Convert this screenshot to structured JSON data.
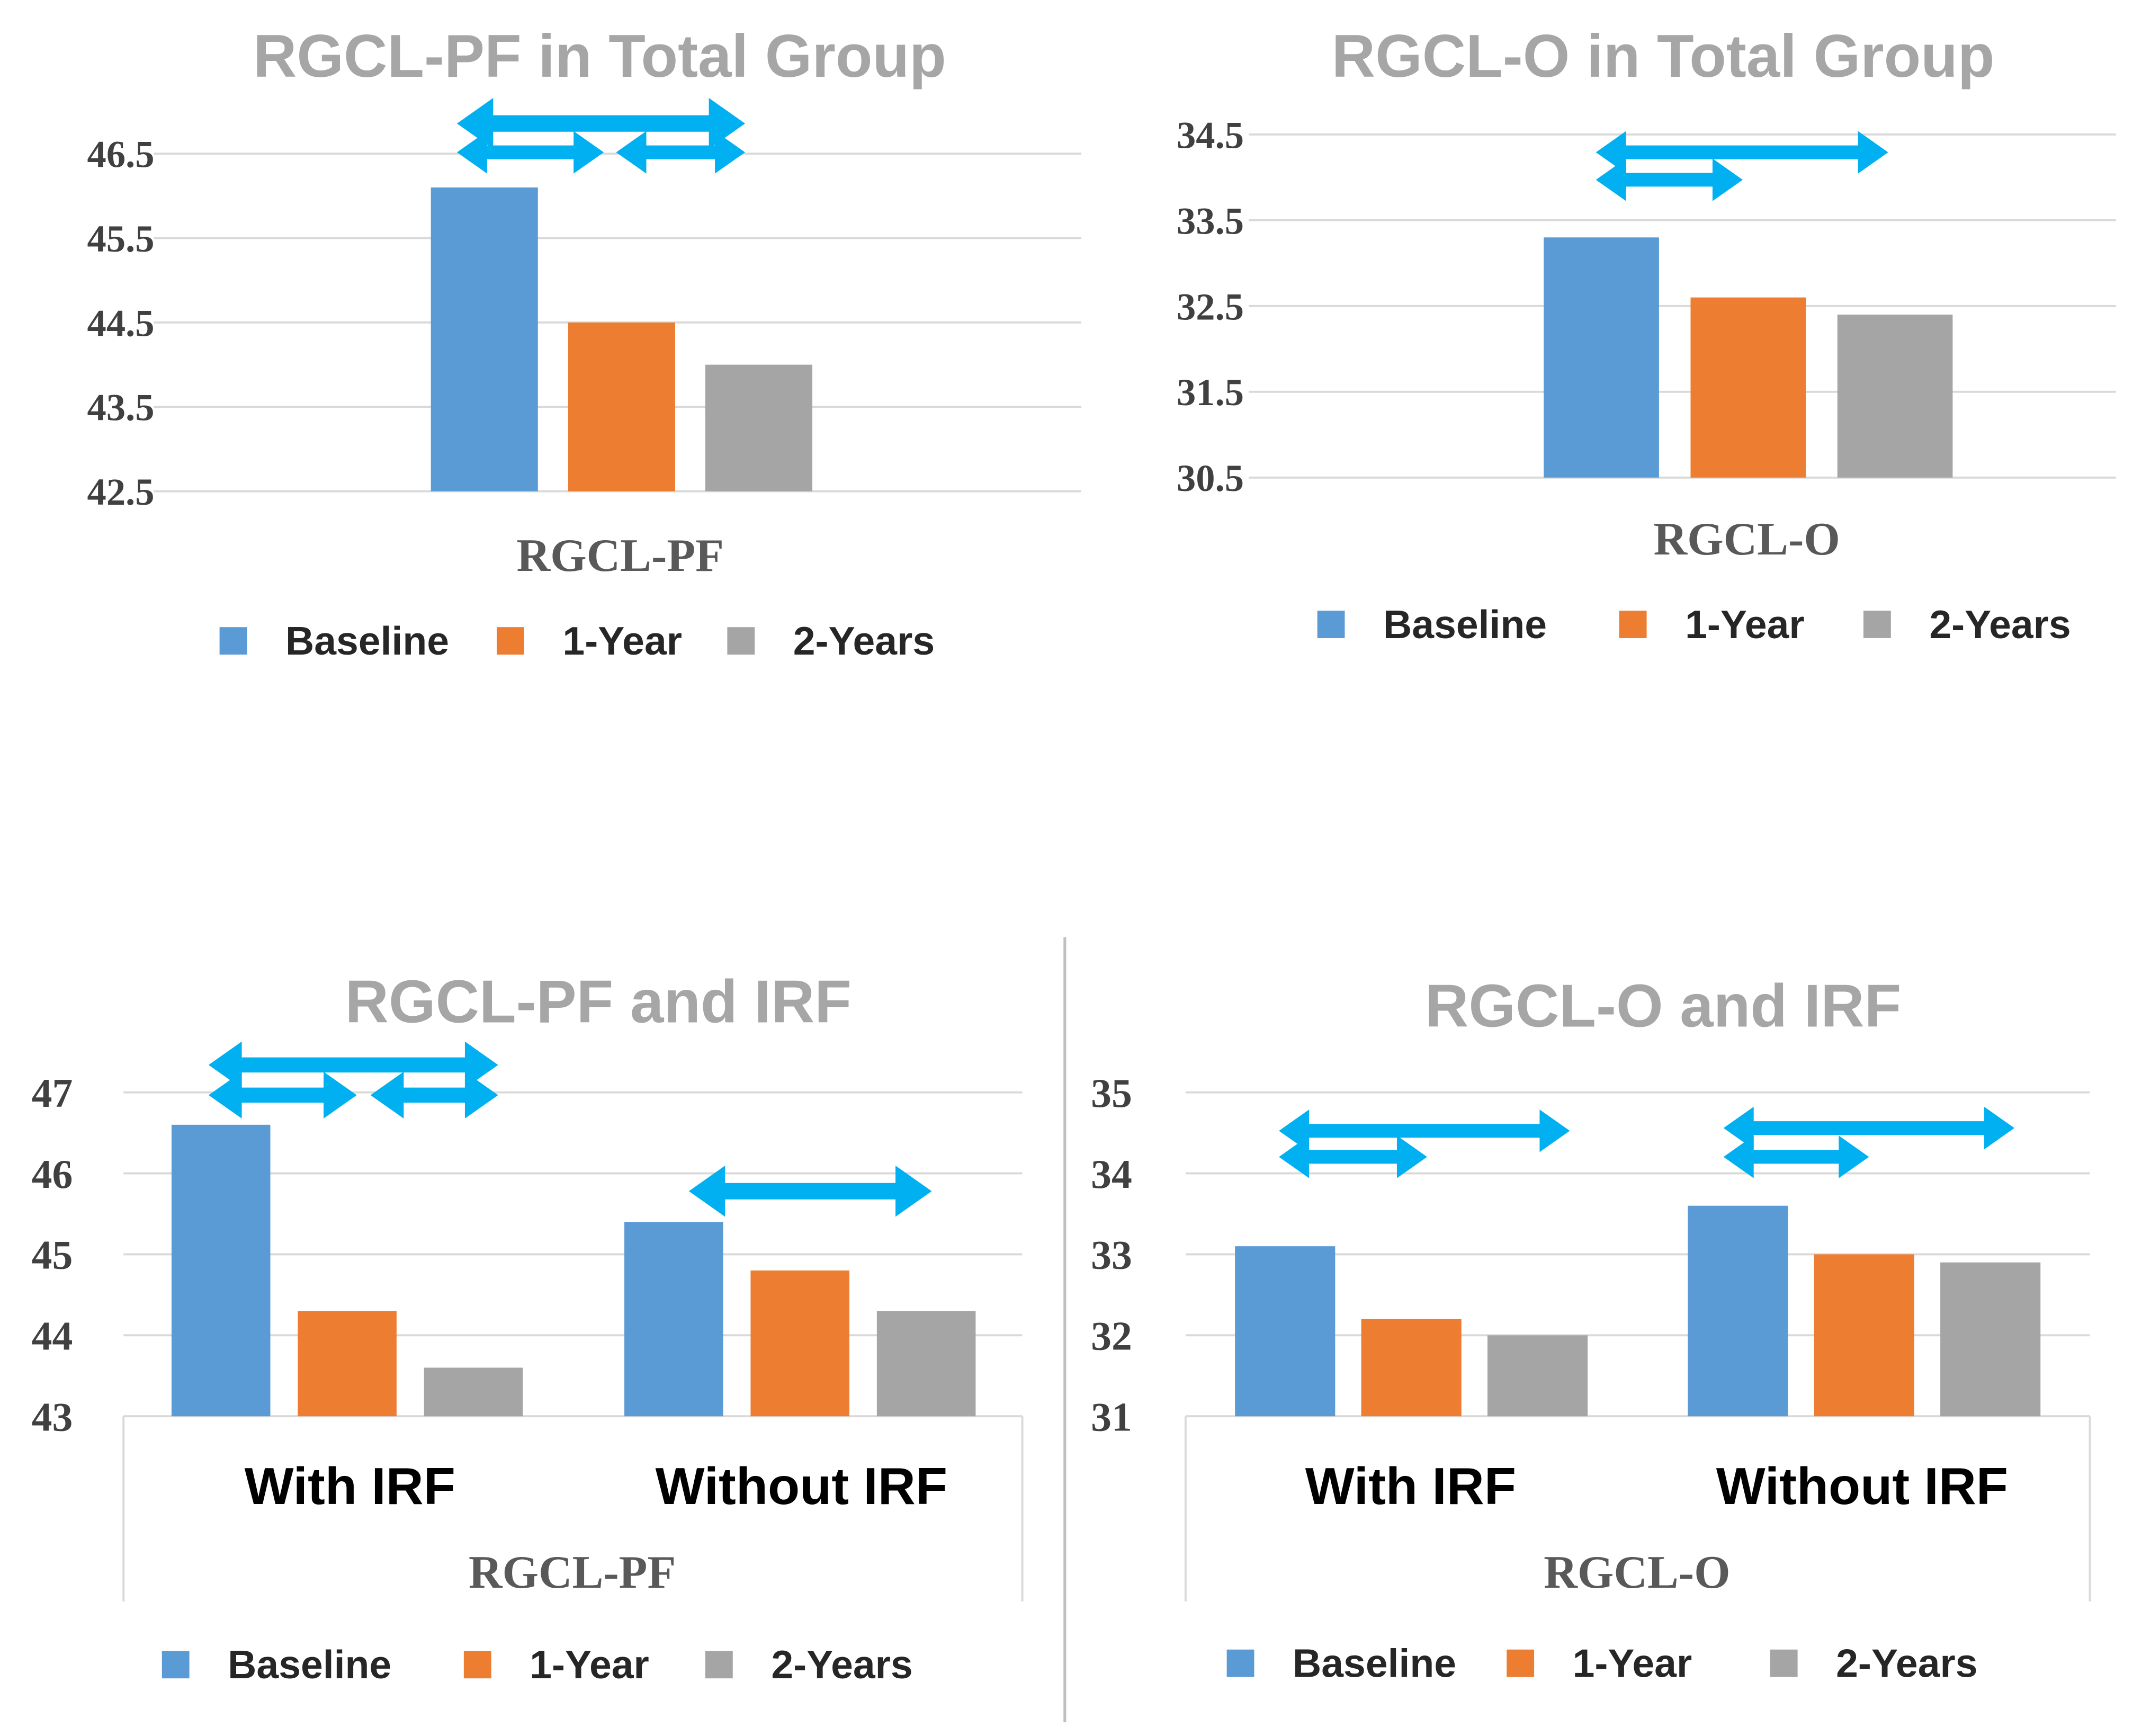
{
  "colors": {
    "baseline": "#5b9bd5",
    "year1": "#ed7d31",
    "year2": "#a5a5a5",
    "arrow": "#00b0f0",
    "grid": "#d9d9d9",
    "title": "#a6a6a6"
  },
  "chart_data": [
    {
      "type": "bar",
      "title": "RGCL-PF in Total Group",
      "xlabel": "RGCL-PF",
      "ylabel": "",
      "ylim": [
        42.5,
        47
      ],
      "yticks": [
        "42.5",
        "43.5",
        "44.5",
        "45.5",
        "46.5"
      ],
      "categories": [
        ""
      ],
      "series": [
        {
          "name": "Baseline",
          "values": [
            46.1
          ]
        },
        {
          "name": "1-Year",
          "values": [
            44.5
          ]
        },
        {
          "name": "2-Years",
          "values": [
            44.0
          ]
        }
      ],
      "annotations": [
        "double-arrow Baseline to 2-Years",
        "double-arrow Baseline to 1-Year",
        "double-arrow 1-Year to 2-Years"
      ],
      "legend": [
        "Baseline",
        "1-Year",
        "2-Years"
      ]
    },
    {
      "type": "bar",
      "title": "RGCL-O in Total Group",
      "xlabel": "RGCL-O",
      "ylabel": "",
      "ylim": [
        30.5,
        34.5
      ],
      "yticks": [
        "30.5",
        "31.5",
        "32.5",
        "33.5",
        "34.5"
      ],
      "categories": [
        ""
      ],
      "series": [
        {
          "name": "Baseline",
          "values": [
            33.3
          ]
        },
        {
          "name": "1-Year",
          "values": [
            32.6
          ]
        },
        {
          "name": "2-Years",
          "values": [
            32.4
          ]
        }
      ],
      "annotations": [
        "double-arrow Baseline to 2-Years",
        "double-arrow Baseline to 1-Year"
      ],
      "legend": [
        "Baseline",
        "1-Year",
        "2-Years"
      ]
    },
    {
      "type": "bar",
      "title": "RGCL-PF and IRF",
      "xlabel": "RGCL-PF",
      "ylabel": "",
      "ylim": [
        43,
        47
      ],
      "yticks": [
        "43",
        "44",
        "45",
        "46",
        "47"
      ],
      "categories": [
        "With IRF",
        "Without IRF"
      ],
      "series": [
        {
          "name": "Baseline",
          "values": [
            46.6,
            45.4
          ]
        },
        {
          "name": "1-Year",
          "values": [
            44.3,
            44.8
          ]
        },
        {
          "name": "2-Years",
          "values": [
            43.6,
            44.3
          ]
        }
      ],
      "annotations": [
        "With IRF: double-arrow Baseline to 2-Years",
        "With IRF: double-arrow Baseline to 1-Year",
        "With IRF: double-arrow 1-Year to 2-Years",
        "Without IRF: double-arrow Baseline to 2-Years"
      ],
      "legend": [
        "Baseline",
        "1-Year",
        "2-Years"
      ]
    },
    {
      "type": "bar",
      "title": "RGCL-O and IRF",
      "xlabel": "RGCL-O",
      "ylabel": "",
      "ylim": [
        31,
        35
      ],
      "yticks": [
        "31",
        "32",
        "33",
        "34",
        "35"
      ],
      "categories": [
        "With IRF",
        "Without IRF"
      ],
      "series": [
        {
          "name": "Baseline",
          "values": [
            33.1,
            33.6
          ]
        },
        {
          "name": "1-Year",
          "values": [
            32.2,
            33.0
          ]
        },
        {
          "name": "2-Years",
          "values": [
            32.0,
            32.9
          ]
        }
      ],
      "annotations": [
        "With IRF: double-arrow Baseline to 2-Years",
        "With IRF: double-arrow Baseline to 1-Year",
        "Without IRF: double-arrow Baseline to 2-Years",
        "Without IRF: double-arrow Baseline to 1-Year"
      ],
      "legend": [
        "Baseline",
        "1-Year",
        "2-Years"
      ]
    }
  ]
}
